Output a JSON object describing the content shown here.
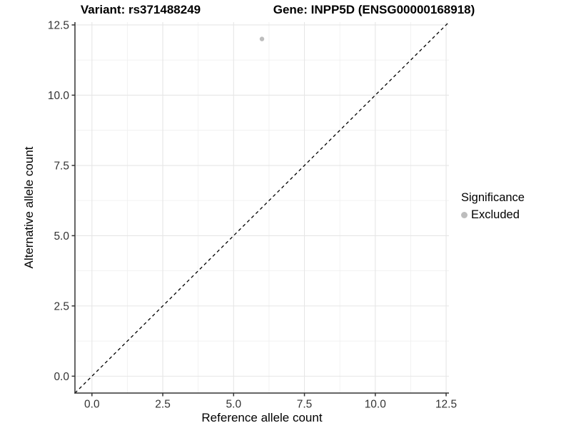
{
  "chart_data": {
    "type": "scatter",
    "title_left": "Variant: rs371488249",
    "title_right": "Gene: INPP5D (ENSG00000168918)",
    "xlabel": "Reference allele count",
    "ylabel": "Alternative allele count",
    "xlim": [
      -0.6,
      12.6
    ],
    "ylim": [
      -0.6,
      12.6
    ],
    "xticks": [
      0,
      2.5,
      5,
      7.5,
      10,
      12.5
    ],
    "xtick_labels": [
      "0.0",
      "2.5",
      "5.0",
      "7.5",
      "10.0",
      "12.5"
    ],
    "yticks": [
      0,
      2.5,
      5,
      7.5,
      10,
      12.5
    ],
    "ytick_labels": [
      "0.0",
      "2.5",
      "5.0",
      "7.5",
      "10.0",
      "12.5"
    ],
    "grid": true,
    "minor_grid": true,
    "series": [
      {
        "name": "Excluded",
        "marker": "circle",
        "color": "#bdbdbd",
        "points": [
          {
            "x": 6,
            "y": 12
          }
        ]
      }
    ],
    "abline": {
      "slope": 1,
      "intercept": 0,
      "style": "dashed",
      "color": "#000000"
    },
    "legend": {
      "title": "Significance",
      "position": "right",
      "entries": [
        {
          "label": "Excluded",
          "color": "#bdbdbd",
          "marker": "circle"
        }
      ]
    },
    "colors": {
      "major_grid": "#e6e6e6",
      "minor_grid": "#efefef",
      "axis_line": "#333333",
      "tick_label": "#333333",
      "point": "#bdbdbd"
    }
  }
}
